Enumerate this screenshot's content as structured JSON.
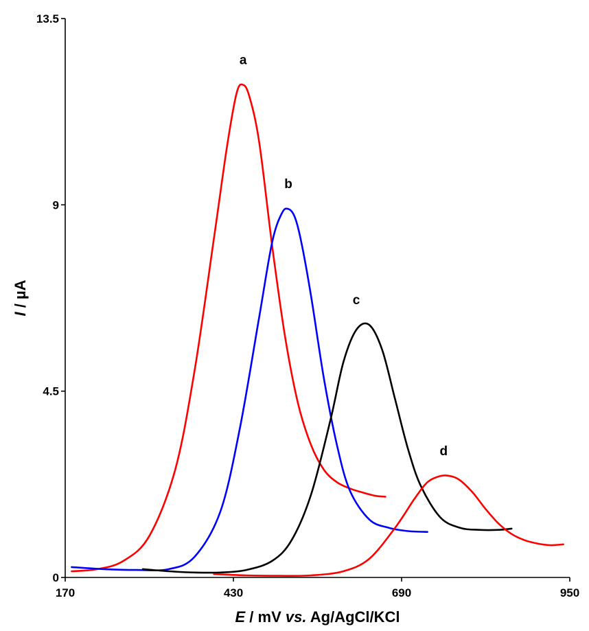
{
  "chart_data": {
    "type": "line",
    "xlabel": {
      "var": "E",
      "rest": " / mV ",
      "vs": "vs.",
      "ref": " Ag/AgCl/KCl"
    },
    "ylabel": {
      "var": "I",
      "rest": " / µA"
    },
    "xlim": [
      170,
      950
    ],
    "ylim": [
      0,
      13.5
    ],
    "xticks": [
      "170",
      "430",
      "690",
      "950"
    ],
    "yticks": [
      "0",
      "4.5",
      "9",
      "13.5"
    ],
    "grid": false,
    "legend": "none",
    "series": [
      {
        "label": "a",
        "color": "#ff0000",
        "x": [
          180,
          220,
          260,
          300,
          340,
          370,
          400,
          420,
          435,
          445,
          455,
          470,
          490,
          510,
          530,
          550,
          570,
          590,
          610,
          630,
          650,
          665
        ],
        "y": [
          0.15,
          0.2,
          0.4,
          1.0,
          2.6,
          5.0,
          8.2,
          10.4,
          11.7,
          11.9,
          11.6,
          10.5,
          8.0,
          5.8,
          4.2,
          3.2,
          2.6,
          2.3,
          2.15,
          2.05,
          1.97,
          1.95
        ]
      },
      {
        "label": "b",
        "color": "#0000ff",
        "x": [
          180,
          230,
          280,
          330,
          370,
          410,
          440,
          470,
          490,
          505,
          515,
          525,
          535,
          550,
          570,
          590,
          610,
          640,
          670,
          700,
          730
        ],
        "y": [
          0.25,
          0.2,
          0.18,
          0.2,
          0.5,
          1.6,
          3.6,
          6.3,
          8.1,
          8.8,
          8.9,
          8.7,
          8.1,
          6.8,
          4.8,
          3.2,
          2.1,
          1.4,
          1.2,
          1.12,
          1.1
        ]
      },
      {
        "label": "c",
        "color": "#000000",
        "x": [
          290,
          330,
          370,
          410,
          450,
          490,
          520,
          550,
          580,
          600,
          620,
          640,
          660,
          680,
          700,
          720,
          750,
          780,
          810,
          840,
          860
        ],
        "y": [
          0.2,
          0.15,
          0.12,
          0.12,
          0.18,
          0.4,
          0.9,
          2.0,
          3.8,
          5.2,
          5.98,
          6.1,
          5.5,
          4.3,
          3.1,
          2.2,
          1.45,
          1.2,
          1.15,
          1.15,
          1.18
        ]
      },
      {
        "label": "d",
        "color": "#ff0000",
        "x": [
          400,
          450,
          500,
          550,
          600,
          640,
          680,
          710,
          730,
          750,
          765,
          780,
          800,
          820,
          840,
          860,
          880,
          900,
          920,
          940
        ],
        "y": [
          0.08,
          0.05,
          0.04,
          0.05,
          0.15,
          0.45,
          1.2,
          1.9,
          2.3,
          2.45,
          2.45,
          2.35,
          2.05,
          1.65,
          1.3,
          1.05,
          0.9,
          0.82,
          0.78,
          0.8
        ]
      }
    ],
    "annotations": [
      {
        "text": "a",
        "x": 445,
        "y": 12.4
      },
      {
        "text": "b",
        "x": 515,
        "y": 9.4
      },
      {
        "text": "c",
        "x": 620,
        "y": 6.6
      },
      {
        "text": "d",
        "x": 755,
        "y": 2.95
      }
    ]
  }
}
